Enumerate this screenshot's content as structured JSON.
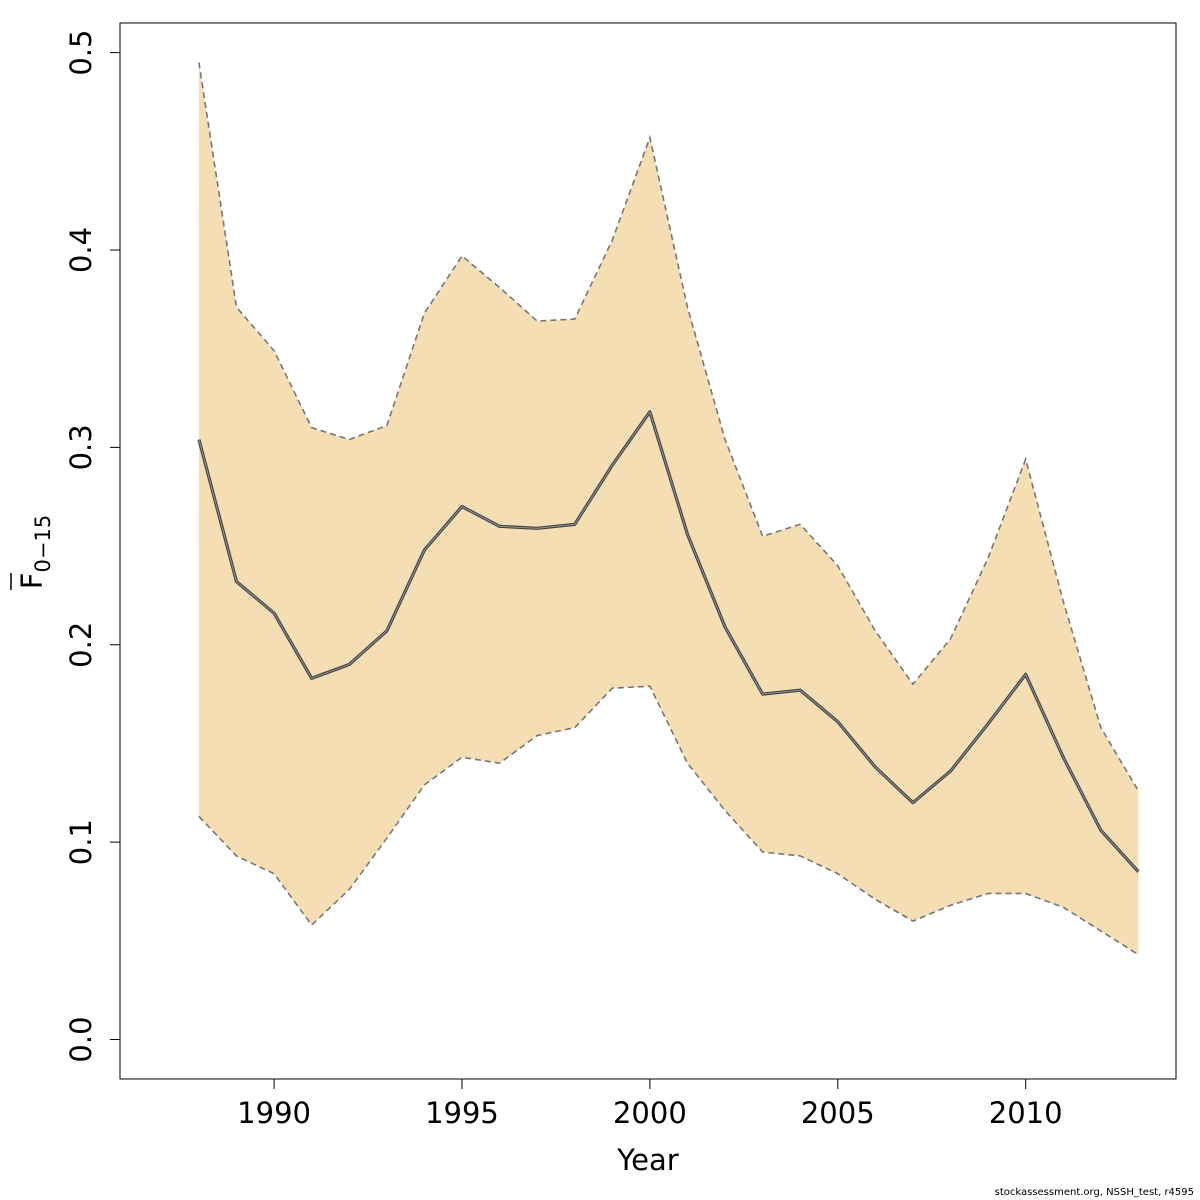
{
  "chart_data": {
    "type": "line",
    "title": "",
    "xlabel": "Year",
    "ylabel": {
      "base": "F",
      "subscript": "0−15"
    },
    "x": [
      1988,
      1989,
      1990,
      1991,
      1992,
      1993,
      1994,
      1995,
      1996,
      1997,
      1998,
      1999,
      2000,
      2001,
      2002,
      2003,
      2004,
      2005,
      2006,
      2007,
      2008,
      2009,
      2010,
      2011,
      2012,
      2013
    ],
    "series": [
      {
        "role": "estimate",
        "values": [
          0.304,
          0.232,
          0.216,
          0.183,
          0.19,
          0.207,
          0.248,
          0.27,
          0.26,
          0.259,
          0.261,
          0.291,
          0.318,
          0.256,
          0.209,
          0.175,
          0.177,
          0.161,
          0.138,
          0.12,
          0.136,
          0.16,
          0.185,
          0.143,
          0.106,
          0.085
        ],
        "color": "#444444"
      },
      {
        "role": "upper",
        "values": [
          0.495,
          0.371,
          0.349,
          0.31,
          0.304,
          0.311,
          0.368,
          0.397,
          0.381,
          0.364,
          0.365,
          0.405,
          0.457,
          0.371,
          0.304,
          0.255,
          0.261,
          0.24,
          0.207,
          0.18,
          0.203,
          0.244,
          0.294,
          0.222,
          0.158,
          0.126
        ],
        "color": "#777777"
      },
      {
        "role": "lower",
        "values": [
          0.113,
          0.093,
          0.084,
          0.058,
          0.076,
          0.102,
          0.129,
          0.143,
          0.14,
          0.154,
          0.158,
          0.178,
          0.179,
          0.14,
          0.116,
          0.095,
          0.093,
          0.084,
          0.071,
          0.06,
          0.068,
          0.074,
          0.074,
          0.067,
          0.055,
          0.043
        ],
        "color": "#777777"
      }
    ],
    "band_color": "#F5DEB3",
    "xlim": [
      1985.9,
      2014.0
    ],
    "ylim": [
      -0.02,
      0.515
    ],
    "xticks": [
      1990,
      1995,
      2000,
      2005,
      2010
    ],
    "yticks": [
      0.0,
      0.1,
      0.2,
      0.3,
      0.4,
      0.5
    ],
    "ytick_labels": [
      "0.0",
      "0.1",
      "0.2",
      "0.3",
      "0.4",
      "0.5"
    ],
    "grid": false,
    "legend": "none"
  },
  "footer": "stockassessment.org, NSSH_test, r4595"
}
